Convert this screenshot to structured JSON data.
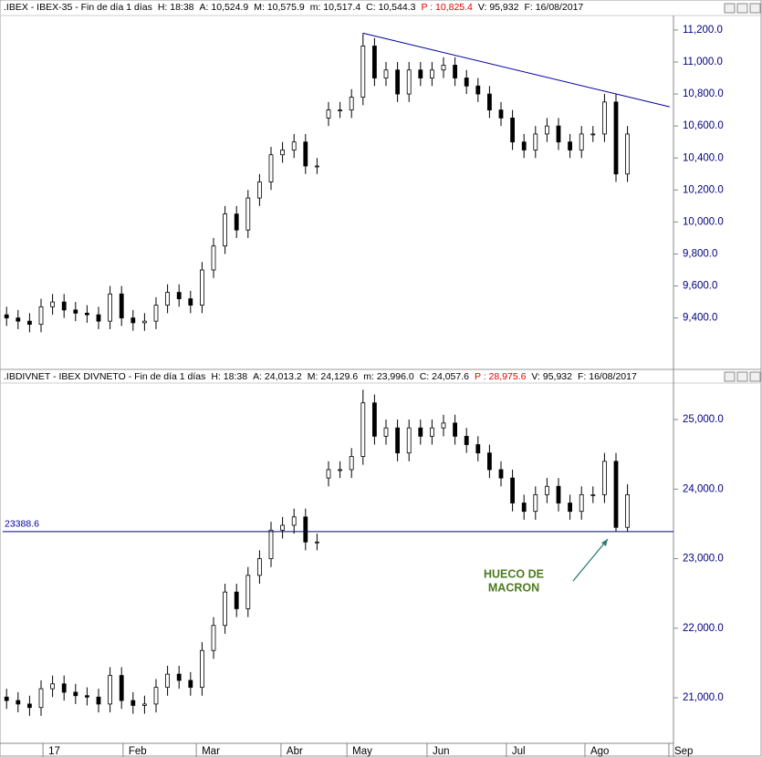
{
  "chart_data": [
    {
      "type": "candlestick",
      "header": [
        ".IBEX - IBEX-35 - Fin de día 1 días",
        "H: 18:38",
        "A: 10,524.9",
        "M: 10,575.9",
        "m: 10,517.4",
        "C: 10,544.3",
        "P : 10,825.4",
        "V: 95,932",
        "F: 16/08/2017"
      ],
      "xlim": [
        0,
        175
      ],
      "ylim": [
        9090,
        11285
      ],
      "yticks": [
        {
          "value": 9400,
          "label": "9,400.0"
        },
        {
          "value": 9600,
          "label": "9,600.0"
        },
        {
          "value": 9800,
          "label": "9,800.0"
        },
        {
          "value": 10000,
          "label": "10,000.0"
        },
        {
          "value": 10200,
          "label": "10,200.0"
        },
        {
          "value": 10400,
          "label": "10,400.0"
        },
        {
          "value": 10600,
          "label": "10,600.0"
        },
        {
          "value": 10800,
          "label": "10,800.0"
        },
        {
          "value": 11000,
          "label": "11,000.0"
        },
        {
          "value": 11200,
          "label": "11,200.0"
        }
      ],
      "x": [
        1,
        4,
        7,
        10,
        13,
        16,
        19,
        22,
        25,
        28,
        31,
        34,
        37,
        40,
        43,
        46,
        49,
        52,
        55,
        58,
        61,
        64,
        67,
        70,
        73,
        76,
        79,
        82,
        85,
        88,
        91,
        94,
        97,
        100,
        103,
        106,
        109,
        112,
        115,
        118,
        121,
        124,
        127,
        130,
        133,
        136,
        139,
        142,
        145,
        148,
        151,
        154,
        157,
        160,
        163
      ],
      "open": [
        9420,
        9400,
        9380,
        9360,
        9470,
        9500,
        9450,
        9430,
        9420,
        9380,
        9550,
        9400,
        9370,
        9380,
        9480,
        9560,
        9520,
        9480,
        9700,
        9850,
        10050,
        9950,
        10150,
        10250,
        10420,
        10450,
        10500,
        10350,
        10650,
        10700,
        10700,
        10780,
        11100,
        10900,
        10950,
        10800,
        10950,
        10900,
        10950,
        10980,
        10900,
        10850,
        10800,
        10700,
        10650,
        10500,
        10450,
        10550,
        10600,
        10500,
        10450,
        10550,
        10550,
        10750,
        10300
      ],
      "high": [
        9470,
        9450,
        9430,
        9520,
        9550,
        9550,
        9500,
        9480,
        9470,
        9600,
        9600,
        9450,
        9430,
        9530,
        9610,
        9610,
        9570,
        9750,
        9900,
        10100,
        10100,
        10200,
        10300,
        10470,
        10500,
        10550,
        10550,
        10400,
        10750,
        10750,
        10830,
        11180,
        11150,
        11000,
        11000,
        11000,
        11000,
        11000,
        11030,
        11030,
        10950,
        10900,
        10850,
        10750,
        10700,
        10550,
        10600,
        10650,
        10650,
        10550,
        10600,
        10600,
        10800,
        10800,
        10600
      ],
      "low": [
        9350,
        9330,
        9310,
        9310,
        9420,
        9400,
        9380,
        9370,
        9330,
        9330,
        9350,
        9320,
        9320,
        9330,
        9430,
        9470,
        9430,
        9430,
        9650,
        9800,
        9900,
        9900,
        10100,
        10200,
        10370,
        10400,
        10300,
        10300,
        10600,
        10650,
        10650,
        10730,
        10850,
        10850,
        10750,
        10750,
        10850,
        10850,
        10900,
        10850,
        10800,
        10750,
        10650,
        10600,
        10450,
        10400,
        10400,
        10500,
        10450,
        10400,
        10400,
        10500,
        10500,
        10250,
        10250
      ],
      "close": [
        9400,
        9380,
        9360,
        9470,
        9500,
        9450,
        9430,
        9420,
        9380,
        9550,
        9400,
        9370,
        9380,
        9480,
        9560,
        9520,
        9480,
        9700,
        9850,
        10050,
        9950,
        10150,
        10250,
        10420,
        10450,
        10500,
        10350,
        10350,
        10700,
        10700,
        10780,
        11100,
        10900,
        10950,
        10800,
        10950,
        10900,
        10950,
        10980,
        10900,
        10850,
        10800,
        10700,
        10650,
        10500,
        10450,
        10550,
        10600,
        10500,
        10450,
        10550,
        10550,
        10750,
        10300,
        10550
      ],
      "trendline": {
        "x": [
          94,
          174
        ],
        "y": [
          11180,
          10720
        ],
        "color": "#0000a0"
      }
    },
    {
      "type": "candlestick",
      "header": [
        ".IBDIVNET - IBEX DIVNETO - Fin de día 1 días",
        "H: 18:38",
        "A: 24,013.2",
        "M: 24,129.6",
        "m: 23,996.0",
        "C: 24,057.6",
        "P : 28,975.6",
        "V: 95,932",
        "F: 16/08/2017"
      ],
      "xlim": [
        0,
        175
      ],
      "ylim": [
        20345,
        25525
      ],
      "yticks": [
        {
          "value": 21000,
          "label": "21,000.0"
        },
        {
          "value": 22000,
          "label": "22,000.0"
        },
        {
          "value": 23000,
          "label": "23,000.0"
        },
        {
          "value": 24000,
          "label": "24,000.0"
        },
        {
          "value": 25000,
          "label": "25,000.0"
        }
      ],
      "xticks": [
        {
          "value": 10.5,
          "label": "17"
        },
        {
          "value": 31.4,
          "label": "Feb"
        },
        {
          "value": 50.5,
          "label": "Mar"
        },
        {
          "value": 72.6,
          "label": "Abr"
        },
        {
          "value": 89.8,
          "label": "May"
        },
        {
          "value": 110.7,
          "label": "Jun"
        },
        {
          "value": 131.4,
          "label": "Jul"
        },
        {
          "value": 151.9,
          "label": "Ago"
        },
        {
          "value": 173.8,
          "label": "Sep"
        }
      ],
      "x": [
        1,
        4,
        7,
        10,
        13,
        16,
        19,
        22,
        25,
        28,
        31,
        34,
        37,
        40,
        43,
        46,
        49,
        52,
        55,
        58,
        61,
        64,
        67,
        70,
        73,
        76,
        79,
        82,
        85,
        88,
        91,
        94,
        97,
        100,
        103,
        106,
        109,
        112,
        115,
        118,
        121,
        124,
        127,
        130,
        133,
        136,
        139,
        142,
        145,
        148,
        151,
        154,
        157,
        160,
        163
      ],
      "open": [
        21010,
        20960,
        20910,
        20860,
        21130,
        21200,
        21080,
        21030,
        21010,
        20910,
        21320,
        20960,
        20890,
        20910,
        21150,
        21340,
        21250,
        21150,
        21680,
        22040,
        22520,
        22280,
        22760,
        23000,
        23410,
        23480,
        23600,
        23240,
        24160,
        24280,
        24280,
        24470,
        25240,
        24760,
        24880,
        24520,
        24880,
        24760,
        24880,
        24950,
        24760,
        24640,
        24520,
        24280,
        24160,
        23800,
        23680,
        23920,
        24040,
        23800,
        23680,
        23920,
        23920,
        24400,
        23450
      ],
      "high": [
        21130,
        21080,
        21030,
        21250,
        21320,
        21320,
        21200,
        21150,
        21130,
        21440,
        21440,
        21080,
        21030,
        21270,
        21460,
        21460,
        21370,
        21800,
        22160,
        22640,
        22640,
        22880,
        23120,
        23530,
        23600,
        23720,
        23720,
        23360,
        24400,
        24400,
        24590,
        25430,
        25360,
        25000,
        25000,
        25000,
        25000,
        25000,
        25070,
        25070,
        24880,
        24760,
        24640,
        24400,
        24280,
        23920,
        24040,
        24160,
        24160,
        23920,
        24040,
        24040,
        24520,
        24520,
        24070
      ],
      "low": [
        20840,
        20790,
        20740,
        20740,
        21010,
        20960,
        20910,
        20890,
        20790,
        20790,
        20840,
        20770,
        20770,
        20790,
        21030,
        21130,
        21030,
        21030,
        21560,
        21920,
        22160,
        22160,
        22640,
        22880,
        23290,
        23360,
        23120,
        23120,
        24040,
        24160,
        24160,
        24350,
        24640,
        24640,
        24400,
        24400,
        24640,
        24640,
        24760,
        24640,
        24520,
        24400,
        24160,
        24040,
        23680,
        23560,
        23560,
        23800,
        23680,
        23560,
        23560,
        23800,
        23800,
        23390,
        23390
      ],
      "close": [
        20960,
        20910,
        20860,
        21130,
        21200,
        21080,
        21030,
        21010,
        20910,
        21320,
        20960,
        20890,
        20910,
        21150,
        21340,
        21250,
        21150,
        21680,
        22040,
        22520,
        22280,
        22760,
        23000,
        23410,
        23480,
        23600,
        23240,
        23240,
        24280,
        24280,
        24470,
        25240,
        24760,
        24880,
        24520,
        24880,
        24760,
        24880,
        24950,
        24760,
        24640,
        24520,
        24280,
        24160,
        23800,
        23680,
        23920,
        24040,
        23800,
        23680,
        23920,
        23920,
        24400,
        23450,
        23920
      ],
      "hline": {
        "value": 23388.6,
        "color": "#0000a0"
      },
      "annotation": [
        "HUECO DE",
        "MACRON"
      ]
    }
  ]
}
